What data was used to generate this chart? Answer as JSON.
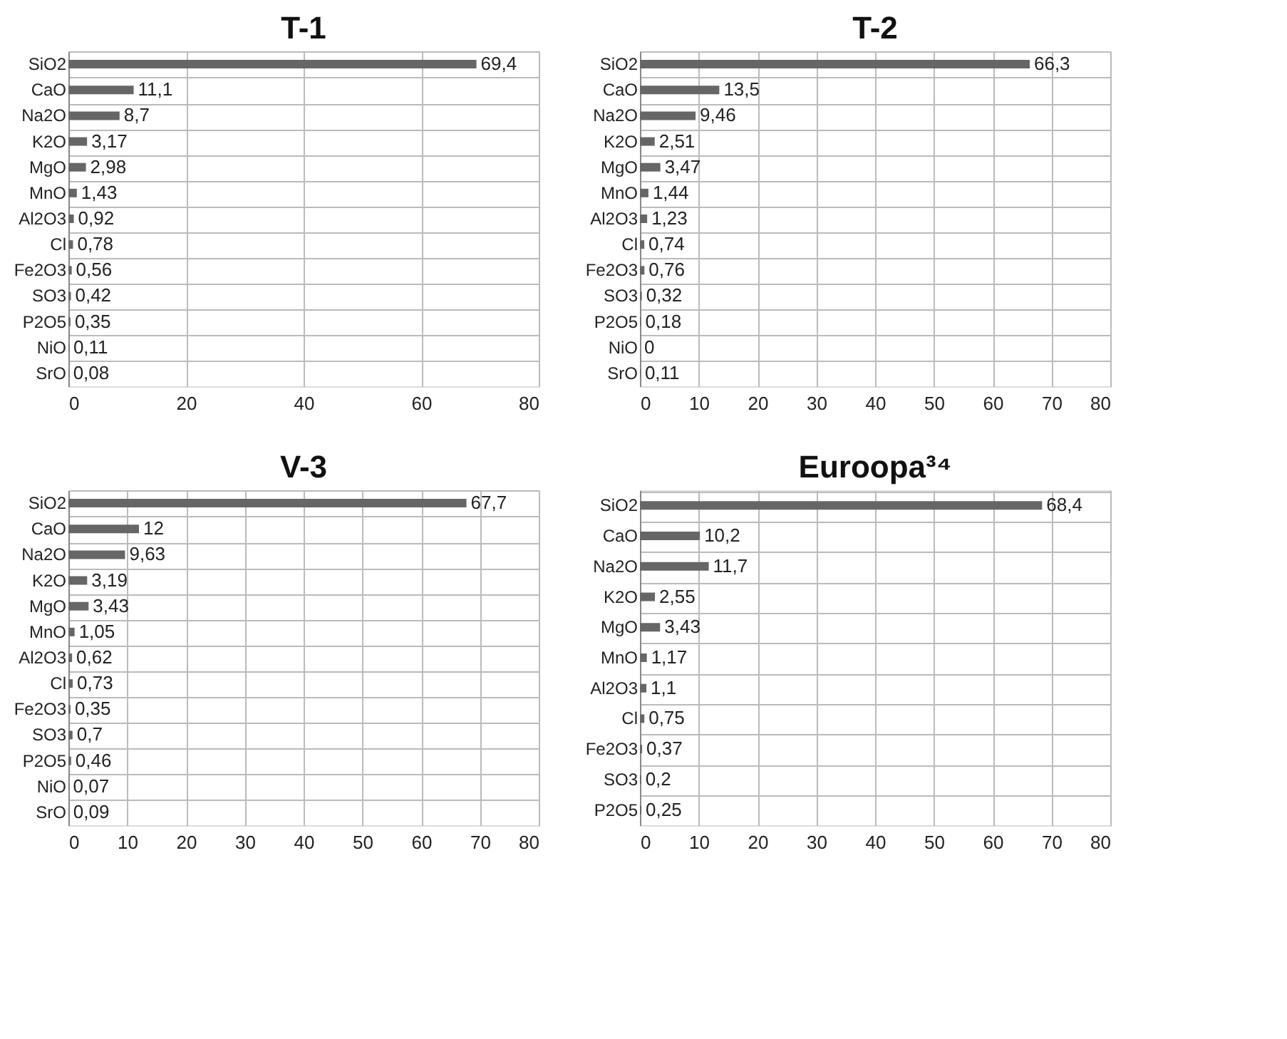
{
  "chart_data": [
    {
      "type": "bar",
      "orientation": "horizontal",
      "title": "T-1",
      "categories": [
        "SiO2",
        "CaO",
        "Na2O",
        "K2O",
        "MgO",
        "MnO",
        "Al2O3",
        "Cl",
        "Fe2O3",
        "SO3",
        "P2O5",
        "NiO",
        "SrO"
      ],
      "values": [
        69.4,
        11.1,
        8.7,
        3.17,
        2.98,
        1.43,
        0.92,
        0.78,
        0.56,
        0.42,
        0.35,
        0.11,
        0.08
      ],
      "value_labels": [
        "69,4",
        "11,1",
        "8,7",
        "3,17",
        "2,98",
        "1,43",
        "0,92",
        "0,78",
        "0,56",
        "0,42",
        "0,35",
        "0,11",
        "0,08"
      ],
      "color": "#666666",
      "xlim": [
        0,
        80
      ],
      "xticks": [
        0,
        20,
        40,
        60,
        80
      ],
      "grid": true
    },
    {
      "type": "bar",
      "orientation": "horizontal",
      "title": "T-2",
      "categories": [
        "SiO2",
        "CaO",
        "Na2O",
        "K2O",
        "MgO",
        "MnO",
        "Al2O3",
        "Cl",
        "Fe2O3",
        "SO3",
        "P2O5",
        "NiO",
        "SrO"
      ],
      "values": [
        66.3,
        13.5,
        9.46,
        2.51,
        3.47,
        1.44,
        1.23,
        0.74,
        0.76,
        0.32,
        0.18,
        0,
        0.11
      ],
      "value_labels": [
        "66,3",
        "13,5",
        "9,46",
        "2,51",
        "3,47",
        "1,44",
        "1,23",
        "0,74",
        "0,76",
        "0,32",
        "0,18",
        "0",
        "0,11"
      ],
      "color": "#666666",
      "xlim": [
        0,
        80
      ],
      "xticks": [
        0,
        10,
        20,
        30,
        40,
        50,
        60,
        70,
        80
      ],
      "grid": true
    },
    {
      "type": "bar",
      "orientation": "horizontal",
      "title": "V-3",
      "categories": [
        "SiO2",
        "CaO",
        "Na2O",
        "K2O",
        "MgO",
        "MnO",
        "Al2O3",
        "Cl",
        "Fe2O3",
        "SO3",
        "P2O5",
        "NiO",
        "SrO"
      ],
      "values": [
        67.7,
        12,
        9.63,
        3.19,
        3.43,
        1.05,
        0.62,
        0.73,
        0.35,
        0.7,
        0.46,
        0.07,
        0.09
      ],
      "value_labels": [
        "67,7",
        "12",
        "9,63",
        "3,19",
        "3,43",
        "1,05",
        "0,62",
        "0,73",
        "0,35",
        "0,7",
        "0,46",
        "0,07",
        "0,09"
      ],
      "color": "#666666",
      "xlim": [
        0,
        80
      ],
      "xticks": [
        0,
        10,
        20,
        30,
        40,
        50,
        60,
        70,
        80
      ],
      "grid": true
    },
    {
      "type": "bar",
      "orientation": "horizontal",
      "title": "Euroopa³⁴",
      "categories": [
        "SiO2",
        "CaO",
        "Na2O",
        "K2O",
        "MgO",
        "MnO",
        "Al2O3",
        "Cl",
        "Fe2O3",
        "SO3",
        "P2O5"
      ],
      "values": [
        68.4,
        10.2,
        11.7,
        2.55,
        3.43,
        1.17,
        1.1,
        0.75,
        0.37,
        0.2,
        0.25
      ],
      "value_labels": [
        "68,4",
        "10,2",
        "11,7",
        "2,55",
        "3,43",
        "1,17",
        "1,1",
        "0,75",
        "0,37",
        "0,2",
        "0,25"
      ],
      "color": "#666666",
      "xlim": [
        0,
        80
      ],
      "xticks": [
        0,
        10,
        20,
        30,
        40,
        50,
        60,
        70,
        80
      ],
      "grid": true
    }
  ]
}
